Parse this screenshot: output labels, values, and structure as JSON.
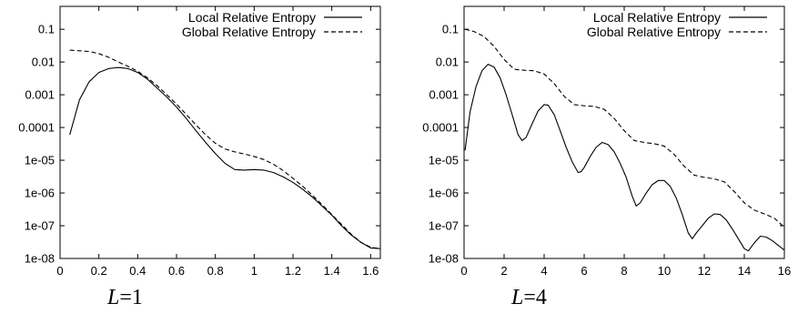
{
  "chart_data": [
    {
      "type": "line",
      "caption": {
        "var": "L",
        "rest": "=1"
      },
      "yscale": "log",
      "xlim": [
        0,
        1.65
      ],
      "ylim": [
        1e-08,
        0.5
      ],
      "xticks": [
        0,
        0.2,
        0.4,
        0.6,
        0.8,
        1,
        1.2,
        1.4,
        1.6
      ],
      "xtick_labels": [
        "0",
        "0.2",
        "0.4",
        "0.6",
        "0.8",
        "1",
        "1.2",
        "1.4",
        "1.6"
      ],
      "yticks": [
        1e-08,
        1e-07,
        1e-06,
        1e-05,
        0.0001,
        0.001,
        0.01,
        0.1
      ],
      "ytick_labels": [
        "1e-08",
        "1e-07",
        "1e-06",
        "1e-05",
        "0.0001",
        "0.001",
        "0.01",
        "0.1"
      ],
      "legend_position": "top-right",
      "grid": false,
      "series": [
        {
          "name": "Local Relative Entropy",
          "style": "solid",
          "x": [
            0.05,
            0.1,
            0.15,
            0.2,
            0.25,
            0.3,
            0.35,
            0.4,
            0.45,
            0.5,
            0.55,
            0.6,
            0.65,
            0.7,
            0.75,
            0.8,
            0.85,
            0.9,
            0.95,
            1.0,
            1.05,
            1.1,
            1.15,
            1.2,
            1.25,
            1.3,
            1.35,
            1.4,
            1.45,
            1.5,
            1.55,
            1.6,
            1.65
          ],
          "y": [
            6e-05,
            0.0007,
            0.0025,
            0.0048,
            0.0063,
            0.0068,
            0.0063,
            0.0048,
            0.003,
            0.0016,
            0.00085,
            0.00042,
            0.00019,
            8e-05,
            3.5e-05,
            1.6e-05,
            8e-06,
            5.2e-06,
            5e-06,
            5.2e-06,
            5e-06,
            4.2e-06,
            3.1e-06,
            2.1e-06,
            1.3e-06,
            7.5e-07,
            4e-07,
            2.1e-07,
            1e-07,
            5.2e-08,
            3.1e-08,
            2.1e-08,
            2e-08
          ]
        },
        {
          "name": "Global Relative Entropy",
          "style": "dashed",
          "x": [
            0.05,
            0.1,
            0.15,
            0.2,
            0.25,
            0.3,
            0.35,
            0.4,
            0.45,
            0.5,
            0.55,
            0.6,
            0.65,
            0.7,
            0.75,
            0.8,
            0.85,
            0.9,
            0.95,
            1.0,
            1.05,
            1.1,
            1.15,
            1.2,
            1.25,
            1.3,
            1.35,
            1.4,
            1.45,
            1.5,
            1.55,
            1.6,
            1.65
          ],
          "y": [
            0.023,
            0.022,
            0.021,
            0.018,
            0.014,
            0.01,
            0.0074,
            0.0052,
            0.0033,
            0.0019,
            0.001,
            0.00052,
            0.00025,
            0.00012,
            6e-05,
            3.3e-05,
            2.2e-05,
            1.8e-05,
            1.55e-05,
            1.3e-05,
            1.05e-05,
            7.5e-06,
            4.8e-06,
            2.8e-06,
            1.6e-06,
            8.5e-07,
            4.4e-07,
            2.2e-07,
            1.1e-07,
            5.5e-08,
            3.1e-08,
            2.2e-08,
            2e-08
          ]
        }
      ]
    },
    {
      "type": "line",
      "caption": {
        "var": "L",
        "rest": "=4"
      },
      "yscale": "log",
      "xlim": [
        0,
        16
      ],
      "ylim": [
        1e-08,
        0.5
      ],
      "xticks": [
        0,
        2,
        4,
        6,
        8,
        10,
        12,
        14,
        16
      ],
      "xtick_labels": [
        "0",
        "2",
        "4",
        "6",
        "8",
        "10",
        "12",
        "14",
        "16"
      ],
      "yticks": [
        1e-08,
        1e-07,
        1e-06,
        1e-05,
        0.0001,
        0.001,
        0.01,
        0.1
      ],
      "ytick_labels": [
        "1e-08",
        "1e-07",
        "1e-06",
        "1e-05",
        "0.0001",
        "0.001",
        "0.01",
        "0.1"
      ],
      "legend_position": "top-right",
      "grid": false,
      "series": [
        {
          "name": "Local Relative Entropy",
          "style": "solid",
          "x": [
            0.05,
            0.3,
            0.6,
            0.9,
            1.2,
            1.5,
            1.8,
            2.1,
            2.4,
            2.7,
            2.9,
            3.1,
            3.4,
            3.7,
            4.0,
            4.2,
            4.5,
            4.8,
            5.1,
            5.4,
            5.7,
            5.85,
            6.0,
            6.3,
            6.6,
            6.9,
            7.2,
            7.5,
            7.8,
            8.1,
            8.4,
            8.6,
            8.8,
            9.1,
            9.4,
            9.7,
            10.0,
            10.3,
            10.6,
            10.9,
            11.2,
            11.4,
            11.6,
            11.9,
            12.2,
            12.5,
            12.8,
            13.1,
            13.4,
            13.7,
            14.0,
            14.2,
            14.5,
            14.8,
            15.1,
            15.4,
            15.7,
            16.0
          ],
          "y": [
            2e-05,
            0.0003,
            0.0018,
            0.0055,
            0.0085,
            0.007,
            0.0033,
            0.001,
            0.00025,
            6e-05,
            4e-05,
            5e-05,
            0.00013,
            0.00032,
            0.0005,
            0.00048,
            0.00025,
            8e-05,
            2.5e-05,
            9e-06,
            4.2e-06,
            4.5e-06,
            6e-06,
            1.3e-05,
            2.5e-05,
            3.5e-05,
            3e-05,
            1.8e-05,
            8e-06,
            3e-06,
            8e-07,
            4e-07,
            5e-07,
            1e-06,
            1.8e-06,
            2.4e-06,
            2.4e-06,
            1.6e-06,
            7e-07,
            2.2e-07,
            6e-08,
            4e-08,
            6e-08,
            1e-07,
            1.7e-07,
            2.3e-07,
            2.2e-07,
            1.5e-07,
            8e-08,
            4e-08,
            2e-08,
            1.7e-08,
            3e-08,
            4.8e-08,
            4.5e-08,
            3.5e-08,
            2.5e-08,
            1.8e-08
          ]
        },
        {
          "name": "Global Relative Entropy",
          "style": "dashed",
          "x": [
            0.05,
            0.5,
            1.0,
            1.5,
            2.0,
            2.5,
            3.0,
            3.5,
            4.0,
            4.5,
            5.0,
            5.5,
            6.0,
            6.5,
            7.0,
            7.5,
            8.0,
            8.5,
            9.0,
            9.5,
            10.0,
            10.5,
            11.0,
            11.5,
            12.0,
            12.5,
            13.0,
            13.5,
            14.0,
            14.5,
            15.0,
            15.5,
            16.0
          ],
          "y": [
            0.1,
            0.085,
            0.06,
            0.03,
            0.012,
            0.006,
            0.0056,
            0.0054,
            0.0043,
            0.0022,
            0.0009,
            0.0005,
            0.00046,
            0.00044,
            0.00036,
            0.00019,
            8e-05,
            4e-05,
            3.5e-05,
            3.2e-05,
            2.7e-05,
            1.5e-05,
            6.5e-06,
            3.5e-06,
            3e-06,
            2.7e-06,
            2.2e-06,
            1.1e-06,
            5e-07,
            3e-07,
            2.3e-07,
            1.7e-07,
            9e-08
          ]
        }
      ]
    }
  ]
}
